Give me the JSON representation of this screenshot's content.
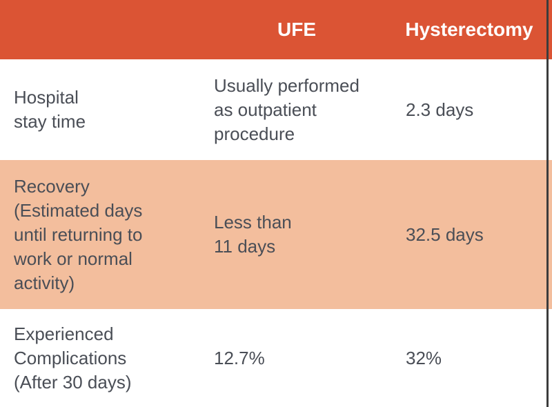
{
  "table": {
    "header": {
      "row_label_col": "",
      "ufe_col": "UFE",
      "hysterectomy_col": "Hysterectomy"
    },
    "rows": [
      {
        "label": "Hospital\nstay time",
        "ufe": "Usually performed\nas outpatient\nprocedure",
        "hysterectomy": "2.3 days"
      },
      {
        "label": "Recovery\n(Estimated days\nuntil returning to\nwork or normal\nactivity)",
        "ufe": "Less than\n11 days",
        "hysterectomy": "32.5 days"
      },
      {
        "label": "Experienced\nComplications\n(After 30 days)",
        "ufe": "12.7%",
        "hysterectomy": "32%"
      }
    ]
  },
  "colors": {
    "header_bg": "#DB5434",
    "highlight_row_bg": "#F3BE9D",
    "header_text": "#FFFFFF",
    "body_text": "#4A4E56",
    "row_bg": "#FFFFFF",
    "edge_line": "#3C3C3C"
  }
}
